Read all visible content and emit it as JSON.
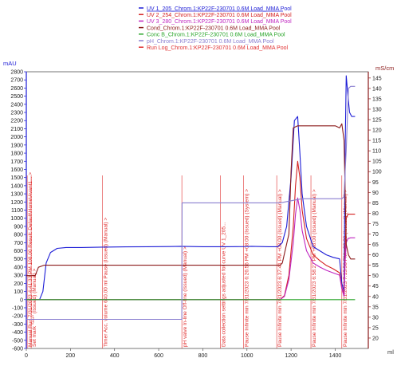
{
  "chart_data": {
    "type": "line",
    "legend_position": "top-center",
    "x_axis": {
      "unit": "ml",
      "range": [
        0,
        1550
      ],
      "ticks": [
        0,
        200,
        400,
        600,
        800,
        1000,
        1200,
        1400
      ]
    },
    "y_left": {
      "unit": "mAU",
      "range": [
        -600,
        2800
      ],
      "ticks": [
        -600,
        -500,
        -400,
        -300,
        -200,
        -100,
        0,
        100,
        200,
        300,
        400,
        500,
        600,
        700,
        800,
        900,
        1000,
        1100,
        1200,
        1300,
        1400,
        1500,
        1600,
        1700,
        1800,
        1900,
        2000,
        2100,
        2200,
        2300,
        2400,
        2500,
        2600,
        2700,
        2800
      ]
    },
    "y_right": {
      "unit": "mS/cm",
      "range": [
        15,
        148
      ],
      "ticks": [
        20,
        25,
        30,
        35,
        40,
        45,
        50,
        55,
        60,
        65,
        70,
        75,
        80,
        85,
        90,
        95,
        100,
        105,
        110,
        115,
        120,
        125,
        130,
        135,
        140,
        145
      ]
    },
    "grid": false,
    "series": [
      {
        "name": "UV 1_205_Chrom.1:KP22F-230701 0.6M Load_MMA Pool",
        "color": "#1c1cd6",
        "axis": "left",
        "x": [
          0,
          60,
          75,
          90,
          110,
          140,
          180,
          250,
          350,
          450,
          550,
          650,
          700,
          750,
          800,
          900,
          1000,
          1020,
          1100,
          1140,
          1160,
          1180,
          1200,
          1215,
          1230,
          1240,
          1250,
          1270,
          1300,
          1330,
          1360,
          1390,
          1420,
          1430,
          1440,
          1445,
          1450,
          1458,
          1465,
          1475,
          1490
        ],
        "y": [
          0,
          0,
          100,
          450,
          580,
          630,
          640,
          640,
          645,
          648,
          650,
          652,
          655,
          652,
          650,
          650,
          652,
          655,
          650,
          650,
          700,
          900,
          1500,
          2200,
          2250,
          1800,
          1300,
          900,
          650,
          600,
          550,
          520,
          500,
          200,
          100,
          1800,
          2750,
          2500,
          2300,
          2250,
          2250
        ]
      },
      {
        "name": "UV 2_254_Chrom.1:KP22F-230701 0.6M Load_MMA Pool",
        "color": "#d42020",
        "axis": "left",
        "x": [
          0,
          1150,
          1170,
          1190,
          1210,
          1220,
          1230,
          1240,
          1250,
          1270,
          1300,
          1330,
          1360,
          1390,
          1420,
          1430,
          1440,
          1445,
          1450,
          1458,
          1470,
          1490
        ],
        "y": [
          0,
          0,
          50,
          300,
          900,
          1400,
          1700,
          1500,
          1100,
          750,
          550,
          480,
          420,
          380,
          330,
          150,
          50,
          600,
          1000,
          1050,
          1050,
          1050
        ]
      },
      {
        "name": "UV 3_280_Chrom.1:KP22F-230701 0.6M Load_MMA Pool",
        "color": "#c026c0",
        "axis": "left",
        "x": [
          0,
          1150,
          1170,
          1190,
          1210,
          1220,
          1230,
          1240,
          1250,
          1270,
          1300,
          1330,
          1360,
          1390,
          1420,
          1430,
          1440,
          1445,
          1450,
          1458,
          1470,
          1490
        ],
        "y": [
          0,
          0,
          40,
          250,
          700,
          1050,
          1250,
          1100,
          850,
          600,
          450,
          400,
          360,
          330,
          300,
          130,
          40,
          450,
          700,
          750,
          760,
          760
        ]
      },
      {
        "name": "Cond_Chrom.1:KP22F-230701 0.6M Load_MMA Pool",
        "color": "#8b1a1a",
        "axis": "right",
        "x": [
          0,
          40,
          55,
          80,
          100,
          400,
          700,
          1000,
          1100,
          1150,
          1160,
          1190,
          1200,
          1210,
          1230,
          1250,
          1300,
          1400,
          1420,
          1430,
          1440,
          1450,
          1460,
          1470,
          1490
        ],
        "y": [
          50,
          50,
          54,
          55,
          55,
          55,
          55,
          55,
          55,
          55,
          56,
          70,
          100,
          121,
          122,
          122,
          122,
          122,
          121,
          123,
          115,
          65,
          60,
          58,
          58
        ]
      },
      {
        "name": "Conc B_Chrom.1:KP22F-230701 0.6M Load_MMA Pool",
        "color": "#2aa52a",
        "axis": "left",
        "x": [
          0,
          1490
        ],
        "y": [
          0,
          0
        ]
      },
      {
        "name": "pH_Chrom.1:KP22F-230701 0.6M Load_MMA Pool",
        "color": "#8a7fd0",
        "axis": "right",
        "x": [
          0,
          705,
          706,
          715,
          800,
          900,
          1000,
          1100,
          1150,
          1200,
          1250,
          1300,
          1350,
          1400,
          1430,
          1440,
          1445,
          1450,
          1460,
          1470,
          1490
        ],
        "y": [
          29,
          29,
          85,
          85,
          85,
          85,
          85,
          85,
          85,
          86,
          87,
          87,
          87,
          87,
          87,
          88,
          100,
          110,
          140,
          141,
          141
        ]
      },
      {
        "name": "Run Log_Chrom.1:KP22F-230701 0.6M Load_MMA Pool",
        "color": "#e03030",
        "axis": "left",
        "x": [],
        "y": []
      }
    ],
    "annotations": [
      {
        "x": 4,
        "text": "Manual Run 7/31/2023 4:41:33 PM 108.00 Result: Default\\Home\\Avant1... >"
      },
      {
        "x": 22,
        "text": "Set mark \"***\" (Issued) (Manual) >"
      },
      {
        "x": 345,
        "text": "Timer Acc. volume 640.00 ml Pause (Issued) (Manual) >"
      },
      {
        "x": 705,
        "text": "pH valve In-line Off-line (Issued) (Manual) >"
      },
      {
        "x": 880,
        "text": "Data collection settings adjusted for curve UV 1_205..."
      },
      {
        "x": 985,
        "text": "Pause Infinite min 7/31/2023 6:26:56 PM +08:00 (Issued) (System) >"
      },
      {
        "x": 1135,
        "text": "Pause Infinite min 7/31/2023 6:37:41 PM +08:00 (Issued) (Manual) >"
      },
      {
        "x": 1290,
        "text": "Pause Infinite min 7/31/2023 6:58:27 PM +08:00 (Issued) (Manual) >"
      },
      {
        "x": 1430,
        "text": "Pause Infinite min 7/31/2023 7:13:56 PM +08:00 (Issued) (Manual) >"
      }
    ]
  }
}
